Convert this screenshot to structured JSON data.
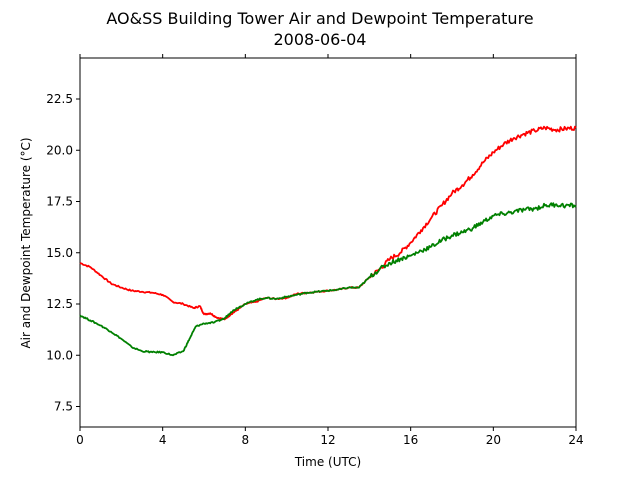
{
  "chart_data": {
    "type": "line",
    "title": "AO&SS Building Tower Air and Dewpoint Temperature",
    "subtitle": "2008-06-04",
    "xlabel": "Time (UTC)",
    "ylabel": "Air and Dewpoint Temperature (°C)",
    "xlim": [
      0,
      24
    ],
    "ylim": [
      6.5,
      24.5
    ],
    "xticks": [
      0,
      4,
      8,
      12,
      16,
      20,
      24
    ],
    "xtick_labels": [
      "0",
      "4",
      "8",
      "12",
      "16",
      "20",
      "24"
    ],
    "yticks": [
      7.5,
      10.0,
      12.5,
      15.0,
      17.5,
      20.0,
      22.5
    ],
    "ytick_labels": [
      "7.5",
      "10.0",
      "12.5",
      "15.0",
      "17.5",
      "20.0",
      "22.5"
    ],
    "grid": false,
    "colors": {
      "air": "#ff0000",
      "dewpoint": "#008000"
    },
    "series": [
      {
        "color": "#ff0000",
        "x": [
          0,
          0.5,
          1,
          1.5,
          2,
          2.5,
          3,
          3.5,
          4,
          4.5,
          5,
          5.5,
          5.8,
          6,
          6.3,
          6.6,
          7,
          7.3,
          7.6,
          8,
          8.5,
          9,
          9.5,
          10,
          10.5,
          11,
          11.5,
          12,
          12.5,
          13,
          13.5,
          14,
          14.5,
          15,
          15.5,
          16,
          16.5,
          17,
          17.5,
          18,
          18.5,
          19,
          19.5,
          20,
          20.5,
          21,
          21.5,
          22,
          22.5,
          23,
          23.5,
          24
        ],
        "y": [
          14.5,
          14.3,
          13.9,
          13.5,
          13.3,
          13.15,
          13.1,
          13.05,
          12.95,
          12.6,
          12.5,
          12.3,
          12.4,
          12.0,
          12.05,
          11.85,
          11.75,
          12.0,
          12.2,
          12.5,
          12.6,
          12.8,
          12.75,
          12.8,
          13.0,
          13.05,
          13.1,
          13.15,
          13.2,
          13.3,
          13.3,
          13.8,
          14.2,
          14.7,
          15.0,
          15.5,
          16.1,
          16.7,
          17.3,
          17.9,
          18.3,
          18.8,
          19.4,
          19.9,
          20.3,
          20.6,
          20.8,
          20.95,
          21.1,
          21.0,
          21.05,
          21.1
        ]
      },
      {
        "color": "#008000",
        "x": [
          0,
          0.5,
          1,
          1.5,
          2,
          2.5,
          3,
          3.5,
          4,
          4.5,
          5,
          5.3,
          5.6,
          6,
          6.5,
          7,
          7.3,
          7.6,
          8,
          8.5,
          9,
          9.5,
          10,
          10.5,
          11,
          11.5,
          12,
          12.5,
          13,
          13.5,
          14,
          14.5,
          15,
          15.5,
          16,
          16.5,
          17,
          17.5,
          18,
          18.5,
          19,
          19.5,
          20,
          20.5,
          21,
          21.5,
          22,
          22.5,
          23,
          23.5,
          24
        ],
        "y": [
          11.95,
          11.7,
          11.45,
          11.15,
          10.8,
          10.4,
          10.2,
          10.15,
          10.15,
          10.0,
          10.2,
          10.8,
          11.4,
          11.55,
          11.6,
          11.8,
          12.1,
          12.3,
          12.5,
          12.7,
          12.8,
          12.75,
          12.85,
          12.95,
          13.05,
          13.1,
          13.15,
          13.2,
          13.3,
          13.3,
          13.8,
          14.2,
          14.5,
          14.7,
          14.85,
          15.1,
          15.3,
          15.6,
          15.85,
          16.0,
          16.2,
          16.5,
          16.8,
          16.9,
          17.0,
          17.1,
          17.15,
          17.3,
          17.35,
          17.3,
          17.3
        ]
      }
    ]
  }
}
